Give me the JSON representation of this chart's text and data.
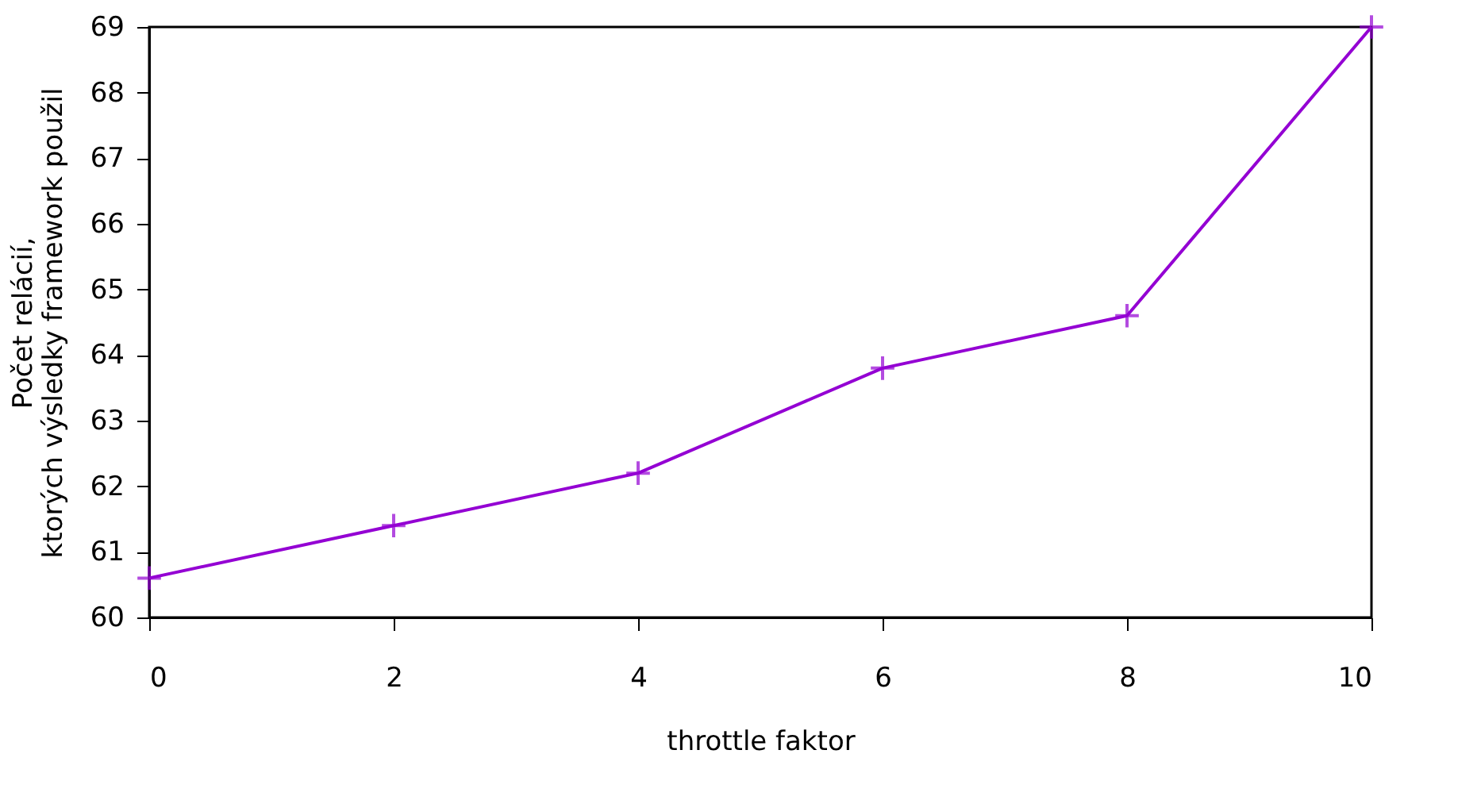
{
  "chart_data": {
    "type": "line",
    "xlabel": "throttle faktor",
    "ylabel": "Počet relácií,\nktorých výsledky framework použil",
    "x": [
      0,
      2,
      4,
      6,
      8,
      10
    ],
    "series": [
      {
        "color": "#9400d3",
        "values": [
          60.6,
          61.4,
          62.2,
          63.8,
          64.6,
          69.0
        ]
      }
    ],
    "xlim": [
      0,
      10
    ],
    "xticks": [
      0,
      2,
      4,
      6,
      8,
      10
    ],
    "ylim": [
      60,
      69
    ],
    "yticks": [
      60,
      61,
      62,
      63,
      64,
      65,
      66,
      67,
      68,
      69
    ],
    "marker": "cross",
    "line_style": "solid",
    "grid": false
  }
}
